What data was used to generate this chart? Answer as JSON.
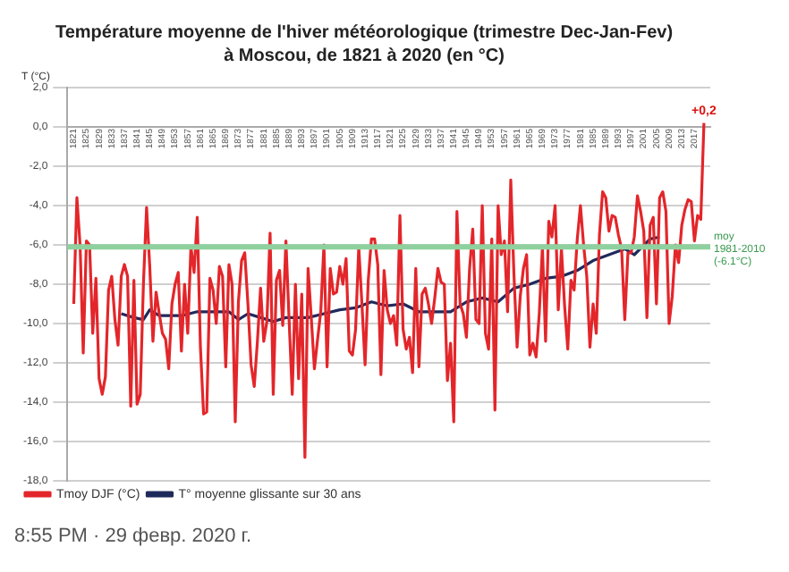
{
  "chart_data": {
    "type": "line",
    "title": "Température moyenne de l'hiver météorologique (trimestre Dec-Jan-Fev)",
    "subtitle": "à Moscou, de 1821 à 2020 (en °C)",
    "ylabel": "T (°C)",
    "xlim": [
      1819,
      2022
    ],
    "xticks": [
      1821,
      1825,
      1829,
      1833,
      1837,
      1841,
      1845,
      1849,
      1853,
      1857,
      1861,
      1865,
      1869,
      1873,
      1877,
      1881,
      1885,
      1889,
      1893,
      1897,
      1901,
      1905,
      1909,
      1913,
      1917,
      1921,
      1925,
      1929,
      1933,
      1937,
      1941,
      1945,
      1949,
      1953,
      1957,
      1961,
      1965,
      1969,
      1973,
      1977,
      1981,
      1985,
      1989,
      1993,
      1997,
      2001,
      2005,
      2009,
      2013,
      2017
    ],
    "ylim": [
      -18,
      2
    ],
    "yticks": [
      {
        "value": -18,
        "label": "-18,0"
      },
      {
        "value": -16,
        "label": "-16,0"
      },
      {
        "value": -14,
        "label": "-14,0"
      },
      {
        "value": -12,
        "label": "-12,0"
      },
      {
        "value": -10,
        "label": "-10,0"
      },
      {
        "value": -8,
        "label": "-8,0"
      },
      {
        "value": -6,
        "label": "-6,0"
      },
      {
        "value": -4,
        "label": "-4,0"
      },
      {
        "value": -2,
        "label": "-2,0"
      },
      {
        "value": 0,
        "label": "0,0"
      },
      {
        "value": 2,
        "label": "2,0"
      }
    ],
    "grid": "y",
    "legend": "bottom left",
    "marker": "none",
    "line_style": "solid",
    "series": [
      {
        "name": "Tmoy DJF (°C)",
        "color": "#e3262a",
        "x": [
          1821,
          1822,
          1823,
          1824,
          1825,
          1826,
          1827,
          1828,
          1829,
          1830,
          1831,
          1832,
          1833,
          1834,
          1835,
          1836,
          1837,
          1838,
          1839,
          1840,
          1841,
          1842,
          1843,
          1844,
          1845,
          1846,
          1847,
          1848,
          1849,
          1850,
          1851,
          1852,
          1853,
          1854,
          1855,
          1856,
          1857,
          1858,
          1859,
          1860,
          1861,
          1862,
          1863,
          1864,
          1865,
          1866,
          1867,
          1868,
          1869,
          1870,
          1871,
          1872,
          1873,
          1874,
          1875,
          1876,
          1877,
          1878,
          1879,
          1880,
          1881,
          1882,
          1883,
          1884,
          1885,
          1886,
          1887,
          1888,
          1889,
          1890,
          1891,
          1892,
          1893,
          1894,
          1895,
          1896,
          1897,
          1898,
          1899,
          1900,
          1901,
          1902,
          1903,
          1904,
          1905,
          1906,
          1907,
          1908,
          1909,
          1910,
          1911,
          1912,
          1913,
          1914,
          1915,
          1916,
          1917,
          1918,
          1919,
          1920,
          1921,
          1922,
          1923,
          1924,
          1925,
          1926,
          1927,
          1928,
          1929,
          1930,
          1931,
          1932,
          1933,
          1934,
          1935,
          1936,
          1937,
          1938,
          1939,
          1940,
          1941,
          1942,
          1943,
          1944,
          1945,
          1946,
          1947,
          1948,
          1949,
          1950,
          1951,
          1952,
          1953,
          1954,
          1955,
          1956,
          1957,
          1958,
          1959,
          1960,
          1961,
          1962,
          1963,
          1964,
          1965,
          1966,
          1967,
          1968,
          1969,
          1970,
          1971,
          1972,
          1973,
          1974,
          1975,
          1976,
          1977,
          1978,
          1979,
          1980,
          1981,
          1982,
          1983,
          1984,
          1985,
          1986,
          1987,
          1988,
          1989,
          1990,
          1991,
          1992,
          1993,
          1994,
          1995,
          1996,
          1997,
          1998,
          1999,
          2000,
          2001,
          2002,
          2003,
          2004,
          2005,
          2006,
          2007,
          2008,
          2009,
          2010,
          2011,
          2012,
          2013,
          2014,
          2015,
          2016,
          2017,
          2018,
          2019,
          2020
        ],
        "values": [
          -9.0,
          -3.6,
          -6.0,
          -11.5,
          -5.8,
          -6.0,
          -10.5,
          -7.7,
          -12.8,
          -13.6,
          -12.7,
          -8.3,
          -7.6,
          -9.8,
          -11.1,
          -7.6,
          -7.0,
          -7.6,
          -14.2,
          -7.8,
          -14.1,
          -13.6,
          -8.0,
          -4.1,
          -7.1,
          -10.9,
          -8.4,
          -9.5,
          -10.5,
          -10.8,
          -12.3,
          -9.0,
          -8.0,
          -7.4,
          -11.4,
          -8.0,
          -10.5,
          -6.1,
          -7.4,
          -4.6,
          -11.2,
          -14.6,
          -14.5,
          -7.7,
          -8.3,
          -10.0,
          -7.1,
          -7.6,
          -12.2,
          -7.0,
          -8.0,
          -15.0,
          -8.9,
          -6.8,
          -6.4,
          -9.0,
          -12.1,
          -13.2,
          -10.9,
          -8.2,
          -10.9,
          -9.9,
          -5.4,
          -13.6,
          -7.8,
          -7.3,
          -10.1,
          -5.8,
          -9.8,
          -13.6,
          -8.0,
          -12.8,
          -8.5,
          -16.8,
          -7.2,
          -9.7,
          -12.3,
          -10.8,
          -9.4,
          -6.0,
          -12.2,
          -7.2,
          -8.5,
          -8.4,
          -7.1,
          -8.0,
          -6.7,
          -11.4,
          -11.6,
          -10.3,
          -6.1,
          -9.0,
          -12.1,
          -7.8,
          -5.7,
          -5.7,
          -7.0,
          -12.6,
          -7.3,
          -9.3,
          -10.0,
          -9.6,
          -11.1,
          -4.5,
          -10.3,
          -11.3,
          -10.7,
          -12.5,
          -7.2,
          -12.2,
          -8.5,
          -8.2,
          -9.0,
          -10.0,
          -8.7,
          -7.2,
          -7.9,
          -8.0,
          -12.9,
          -11.0,
          -15.0,
          -4.3,
          -9.0,
          -9.5,
          -10.7,
          -7.2,
          -5.2,
          -9.8,
          -10.0,
          -4.0,
          -10.5,
          -11.3,
          -5.7,
          -14.4,
          -4.0,
          -6.5,
          -5.8,
          -9.4,
          -2.7,
          -7.5,
          -11.2,
          -8.6,
          -7.2,
          -6.5,
          -11.6,
          -11.0,
          -11.7,
          -9.5,
          -6.1,
          -10.9,
          -4.8,
          -5.6,
          -4.0,
          -9.3,
          -6.2,
          -9.1,
          -11.3,
          -7.8,
          -8.3,
          -5.7,
          -4.0,
          -6.0,
          -7.6,
          -11.2,
          -9.0,
          -10.5,
          -5.5,
          -3.3,
          -3.6,
          -5.3,
          -4.5,
          -4.6,
          -5.5,
          -6.2,
          -9.8,
          -6.4,
          -6.4,
          -5.6,
          -3.5,
          -4.3,
          -5.3,
          -9.7,
          -5.0,
          -4.6,
          -9.0,
          -3.6,
          -3.3,
          -4.3,
          -10.0,
          -8.6,
          -6.0,
          -6.9,
          -5.0,
          -4.2,
          -3.7,
          -3.8,
          -5.8,
          -4.5,
          -4.7,
          0.2
        ]
      },
      {
        "name": "T° moyenne glissante sur 30 ans",
        "color": "#1f2a5c",
        "x": [
          1836,
          1840,
          1843,
          1845,
          1848,
          1855,
          1860,
          1865,
          1870,
          1873,
          1876,
          1880,
          1884,
          1888,
          1895,
          1900,
          1905,
          1910,
          1915,
          1920,
          1925,
          1930,
          1935,
          1940,
          1945,
          1950,
          1955,
          1960,
          1965,
          1970,
          1975,
          1980,
          1985,
          1990,
          1995,
          1998,
          2003,
          2006
        ],
        "values": [
          -9.5,
          -9.7,
          -9.8,
          -9.3,
          -9.6,
          -9.6,
          -9.4,
          -9.4,
          -9.4,
          -9.8,
          -9.5,
          -9.7,
          -9.9,
          -9.7,
          -9.7,
          -9.5,
          -9.3,
          -9.2,
          -8.9,
          -9.1,
          -9.0,
          -9.4,
          -9.4,
          -9.4,
          -8.9,
          -8.7,
          -8.9,
          -8.2,
          -8.0,
          -7.7,
          -7.6,
          -7.3,
          -6.8,
          -6.5,
          -6.2,
          -6.5,
          -5.7,
          -5.6
        ]
      }
    ],
    "ref_lines": [
      {
        "axis": "y",
        "value": -6.1,
        "label": "moy 1981-2010 (-6.1°C)",
        "color": "#8fd19e"
      }
    ],
    "annotations": [
      "+0,2",
      "8:55 PM · 29 февр. 2020 г."
    ]
  }
}
